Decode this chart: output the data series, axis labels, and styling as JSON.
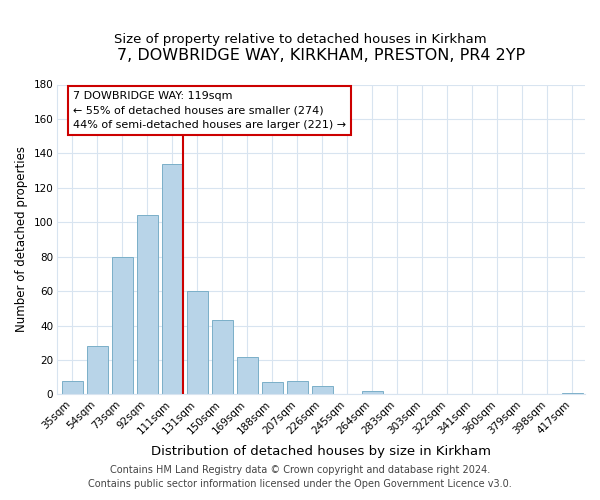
{
  "title": "7, DOWBRIDGE WAY, KIRKHAM, PRESTON, PR4 2YP",
  "subtitle": "Size of property relative to detached houses in Kirkham",
  "xlabel": "Distribution of detached houses by size in Kirkham",
  "ylabel": "Number of detached properties",
  "bar_labels": [
    "35sqm",
    "54sqm",
    "73sqm",
    "92sqm",
    "111sqm",
    "131sqm",
    "150sqm",
    "169sqm",
    "188sqm",
    "207sqm",
    "226sqm",
    "245sqm",
    "264sqm",
    "283sqm",
    "303sqm",
    "322sqm",
    "341sqm",
    "360sqm",
    "379sqm",
    "398sqm",
    "417sqm"
  ],
  "bar_values": [
    8,
    28,
    80,
    104,
    134,
    60,
    43,
    22,
    7,
    8,
    5,
    0,
    2,
    0,
    0,
    0,
    0,
    0,
    0,
    0,
    1
  ],
  "bar_color": "#b8d4e8",
  "bar_edge_color": "#7aafc8",
  "highlight_bar_index": 4,
  "highlight_color": "#cc0000",
  "ylim": [
    0,
    180
  ],
  "yticks": [
    0,
    20,
    40,
    60,
    80,
    100,
    120,
    140,
    160,
    180
  ],
  "annotation_box_text": "7 DOWBRIDGE WAY: 119sqm\n← 55% of detached houses are smaller (274)\n44% of semi-detached houses are larger (221) →",
  "footer_line1": "Contains HM Land Registry data © Crown copyright and database right 2024.",
  "footer_line2": "Contains public sector information licensed under the Open Government Licence v3.0.",
  "background_color": "#ffffff",
  "grid_color": "#d8e4f0",
  "title_fontsize": 11.5,
  "subtitle_fontsize": 9.5,
  "xlabel_fontsize": 9.5,
  "ylabel_fontsize": 8.5,
  "tick_fontsize": 7.5,
  "footer_fontsize": 7.0
}
